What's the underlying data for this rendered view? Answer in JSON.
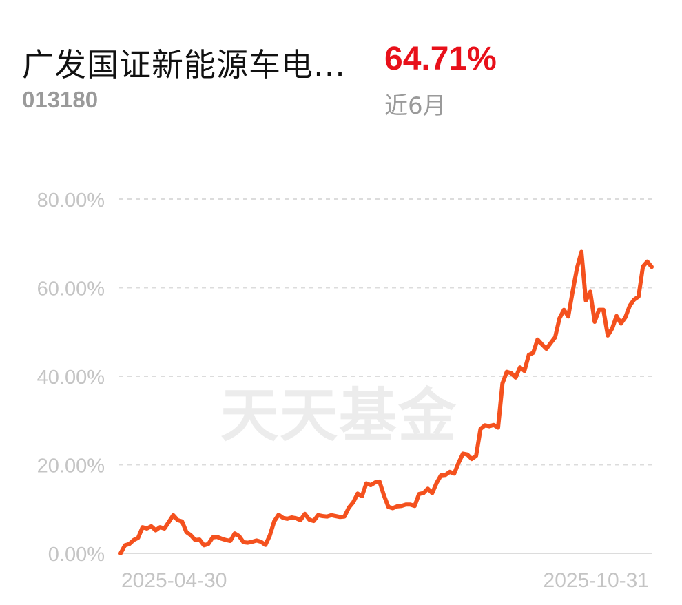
{
  "header": {
    "fund_name": "广发国证新能源车电...",
    "fund_code": "013180",
    "return_value": "64.71%",
    "period_label": "近6月"
  },
  "colors": {
    "line": "#f4511e",
    "return_positive": "#e8101a",
    "grid": "#dcdcdc",
    "tick_text": "#c4c4c4",
    "watermark": "#ececec"
  },
  "watermark_text": "天天基金",
  "chart_data": {
    "type": "line",
    "title": "",
    "xlabel": "",
    "ylabel": "",
    "ylim": [
      0,
      80
    ],
    "yticks": [
      0,
      20,
      40,
      60,
      80
    ],
    "ytick_labels": [
      "0.00%",
      "20.00%",
      "40.00%",
      "60.00%",
      "80.00%"
    ],
    "xtick_labels": [
      "2025-04-30",
      "2025-10-31"
    ],
    "grid": true,
    "series": [
      {
        "values": [
          0,
          1.8,
          2.1,
          3.0,
          3.5,
          5.9,
          5.6,
          6.1,
          5.2,
          5.9,
          5.6,
          7.1,
          8.6,
          7.5,
          7.2,
          4.8,
          4.1,
          3.0,
          3.1,
          1.8,
          2.1,
          3.6,
          3.7,
          3.3,
          3.0,
          2.8,
          4.5,
          3.9,
          2.5,
          2.4,
          2.6,
          2.9,
          2.6,
          1.9,
          4.0,
          7.2,
          8.7,
          8.0,
          7.8,
          8.1,
          7.9,
          7.5,
          8.9,
          7.6,
          7.3,
          8.6,
          8.4,
          8.3,
          8.6,
          8.4,
          8.2,
          8.3,
          10.3,
          11.5,
          13.5,
          12.9,
          15.8,
          15.4,
          16.0,
          16.2,
          13.1,
          10.5,
          10.2,
          10.6,
          10.7,
          11.0,
          11.0,
          10.7,
          13.4,
          13.6,
          14.6,
          13.6,
          15.9,
          17.6,
          17.7,
          18.4,
          18.0,
          20.4,
          22.5,
          22.3,
          21.3,
          22.0,
          28.1,
          28.9,
          28.7,
          29.0,
          28.4,
          38.4,
          41.0,
          40.7,
          39.7,
          42.0,
          41.2,
          44.8,
          45.3,
          48.3,
          47.2,
          46.2,
          47.5,
          48.8,
          53.1,
          55.0,
          53.5,
          59.2,
          64.5,
          68.1,
          57.1,
          59.1,
          52.3,
          55.0,
          55.0,
          49.2,
          50.8,
          53.6,
          51.9,
          53.3,
          55.9,
          57.3,
          58.0,
          64.8,
          65.9,
          64.7
        ]
      }
    ]
  }
}
